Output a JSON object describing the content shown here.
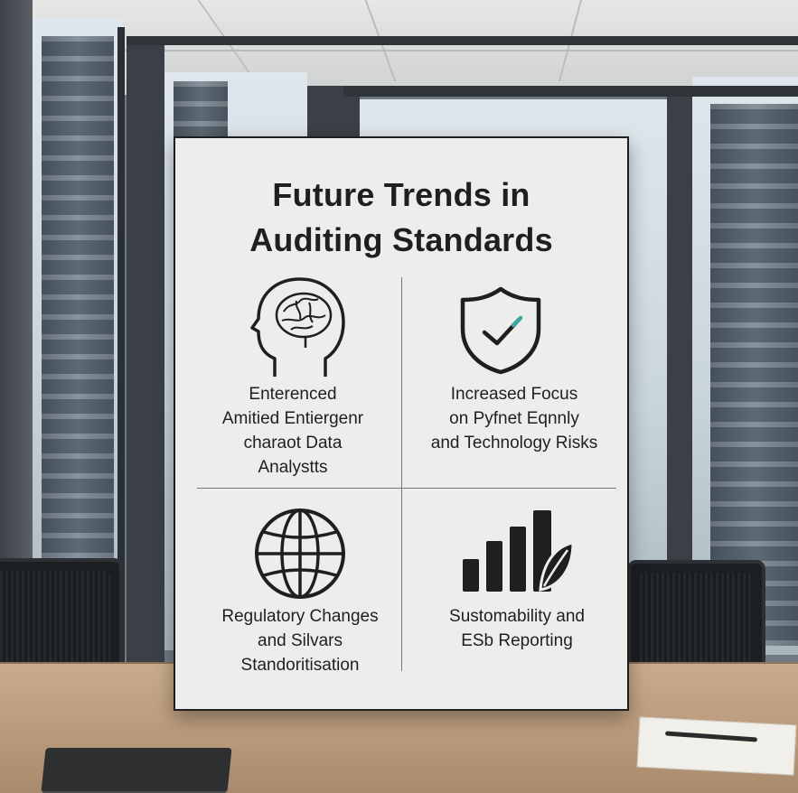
{
  "poster": {
    "title": "Future Trends in\nAuditing Standards",
    "quadrants": [
      {
        "icon": "brain-head-icon",
        "text": "Enterenced\nAmitied Entiergenr\ncharaot Data\nAnalystts"
      },
      {
        "icon": "shield-check-icon",
        "text": "Increased Focus\non Pyfnet Eqnnly\nand Technology Risks"
      },
      {
        "icon": "globe-icon",
        "text": "Regulatory Changes\nand Silvars\nStandoritisation"
      },
      {
        "icon": "bar-chart-leaf-icon",
        "text": "Sustomability and\nESb Reporting"
      }
    ]
  },
  "colors": {
    "board": "#ededeb",
    "ink": "#1f1f1f",
    "accent": "#3ea7a3"
  }
}
